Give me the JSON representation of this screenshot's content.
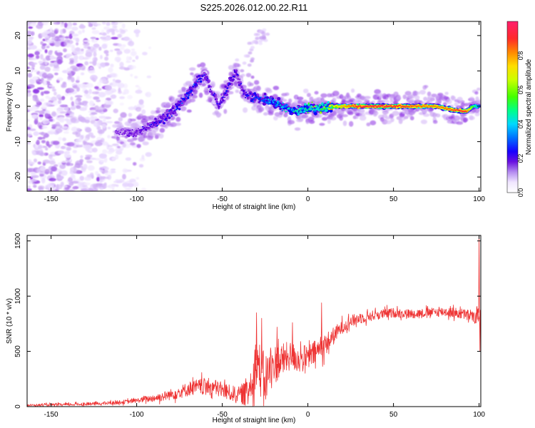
{
  "figure": {
    "title": "S225.2026.012.00.22.R11"
  },
  "chart_data": [
    {
      "type": "heatmap",
      "xlabel": "Height of straight line (km)",
      "ylabel": "Frequency (Hz)",
      "xlim": [
        -164,
        101
      ],
      "ylim": [
        -24,
        24
      ],
      "xticks": [
        "-150",
        "-100",
        "-50",
        "0",
        "50",
        "100"
      ],
      "yticks": [
        "-20",
        "-10",
        "0",
        "10",
        "20"
      ],
      "colorbar": {
        "label": "Normalized spectral amplitude",
        "range": [
          0,
          1
        ],
        "ticks": [
          "0.0",
          "0.2",
          "0.4",
          "0.6",
          "0.8"
        ],
        "colors": [
          "#ffffff",
          "#e8d8ff",
          "#c49cf0",
          "#8a2be2",
          "#5a00e0",
          "#0000ff",
          "#0070ff",
          "#00d8ff",
          "#00ff88",
          "#44ff00",
          "#ccff00",
          "#ffdd00",
          "#ff8800",
          "#ff2a2a",
          "#ff1f6e"
        ]
      },
      "ridge": {
        "points": [
          [
            -112,
            -7
          ],
          [
            -100,
            -7.5
          ],
          [
            -90,
            -5
          ],
          [
            -80,
            -2
          ],
          [
            -72,
            2
          ],
          [
            -64,
            7
          ],
          [
            -60,
            9
          ],
          [
            -56,
            4
          ],
          [
            -52,
            0
          ],
          [
            -46,
            6
          ],
          [
            -42,
            10
          ],
          [
            -38,
            4
          ],
          [
            -34,
            3
          ],
          [
            -28,
            2
          ],
          [
            -22,
            1.5
          ],
          [
            -15,
            0
          ],
          [
            -8,
            -1.5
          ],
          [
            0,
            -0.5
          ],
          [
            8,
            -0.5
          ],
          [
            15,
            0
          ],
          [
            30,
            0
          ],
          [
            45,
            0
          ],
          [
            60,
            0
          ],
          [
            75,
            0
          ],
          [
            85,
            -1
          ],
          [
            92,
            -1.5
          ],
          [
            97,
            0
          ],
          [
            100,
            0
          ]
        ],
        "amplitudes": [
          0.22,
          0.25,
          0.3,
          0.32,
          0.35,
          0.35,
          0.3,
          0.28,
          0.3,
          0.32,
          0.3,
          0.3,
          0.32,
          0.38,
          0.45,
          0.48,
          0.5,
          0.55,
          0.62,
          0.75,
          0.95,
          0.95,
          0.9,
          0.85,
          0.9,
          0.95,
          0.6,
          0.5
        ]
      },
      "noise_region_x": [
        -164,
        -88
      ],
      "faint_branch": [
        [
          -40,
          10
        ],
        [
          -30,
          18
        ],
        [
          -25,
          20
        ]
      ]
    },
    {
      "type": "line",
      "xlabel": "Height of straight line (km)",
      "ylabel": "SNR (10 * v/v)",
      "xlim": [
        -164,
        101
      ],
      "ylim": [
        0,
        1550
      ],
      "xticks": [
        "-150",
        "-100",
        "-50",
        "0",
        "50",
        "100"
      ],
      "yticks": [
        "0",
        "500",
        "1000",
        "1500"
      ],
      "color": "#ee3333",
      "series_profile": {
        "x": [
          -164,
          -140,
          -120,
          -105,
          -95,
          -85,
          -75,
          -68,
          -60,
          -55,
          -50,
          -45,
          -40,
          -35,
          -32,
          -30,
          -28,
          -25,
          -22,
          -20,
          -15,
          -10,
          -5,
          0,
          5,
          10,
          15,
          20,
          25,
          30,
          40,
          50,
          60,
          70,
          80,
          90,
          95,
          98,
          100,
          101
        ],
        "y": [
          12,
          18,
          28,
          45,
          65,
          90,
          130,
          170,
          180,
          175,
          150,
          120,
          110,
          130,
          300,
          420,
          330,
          250,
          340,
          380,
          420,
          460,
          430,
          440,
          500,
          560,
          640,
          720,
          770,
          800,
          830,
          850,
          840,
          850,
          860,
          840,
          820,
          800,
          850,
          900
        ]
      },
      "noise_amplitude_profile": {
        "x": [
          -164,
          -120,
          -100,
          -80,
          -60,
          -40,
          -32,
          -28,
          -20,
          -10,
          0,
          10,
          20,
          40,
          70,
          100
        ],
        "a": [
          10,
          15,
          20,
          50,
          80,
          70,
          200,
          250,
          180,
          130,
          120,
          100,
          60,
          45,
          40,
          55
        ]
      },
      "spikes": [
        [
          -30,
          850
        ],
        [
          -27,
          800
        ],
        [
          -18,
          720
        ],
        [
          -9,
          760
        ],
        [
          8,
          940
        ],
        [
          100,
          1540
        ],
        [
          100.5,
          500
        ]
      ]
    }
  ]
}
